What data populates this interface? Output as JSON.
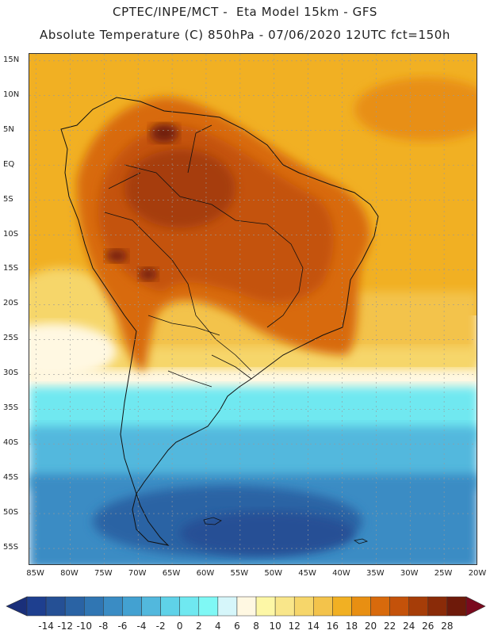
{
  "title": {
    "line1": "CPTEC/INPE/MCT -  Eta Model 15km - GFS",
    "line2": "Absolute Temperature (C) 850hPa - 07/06/2020 12UTC fct=150h"
  },
  "map": {
    "lat_labels": [
      "15N",
      "10N",
      "5N",
      "EQ",
      "5S",
      "10S",
      "15S",
      "20S",
      "25S",
      "30S",
      "35S",
      "40S",
      "45S",
      "50S",
      "55S"
    ],
    "lat_values": [
      15,
      10,
      5,
      0,
      -5,
      -10,
      -15,
      -20,
      -25,
      -30,
      -35,
      -40,
      -45,
      -50,
      -55
    ],
    "lon_labels": [
      "85W",
      "80W",
      "75W",
      "70W",
      "65W",
      "60W",
      "55W",
      "50W",
      "45W",
      "40W",
      "35W",
      "30W",
      "25W",
      "20W"
    ],
    "lon_values": [
      -85,
      -80,
      -75,
      -70,
      -65,
      -60,
      -55,
      -50,
      -45,
      -40,
      -35,
      -30,
      -25,
      -20
    ],
    "extent": {
      "lon_min": -86,
      "lon_max": -20,
      "lat_min": -57.5,
      "lat_max": 16
    }
  },
  "colorbar": {
    "labels": [
      "-14",
      "-12",
      "-10",
      "-8",
      "-6",
      "-4",
      "-2",
      "0",
      "2",
      "4",
      "6",
      "8",
      "10",
      "12",
      "14",
      "16",
      "18",
      "20",
      "22",
      "24",
      "26",
      "28"
    ],
    "colors": [
      "#1e3f8f",
      "#255095",
      "#2a63a4",
      "#3076b3",
      "#3a8cc4",
      "#43a1d1",
      "#52b8dd",
      "#5fd2e8",
      "#6fe8f0",
      "#7ff8f5",
      "#d6f6fa",
      "#fff8e2",
      "#fdf7a6",
      "#f9e68a",
      "#f6d66a",
      "#f3c34b",
      "#f1b023",
      "#e88f12",
      "#d86a0c",
      "#c4520a",
      "#a63d08",
      "#8a2b08",
      "#6e1a0a"
    ],
    "under_color": "#1a2f7a",
    "over_color": "#7a0a1e"
  }
}
